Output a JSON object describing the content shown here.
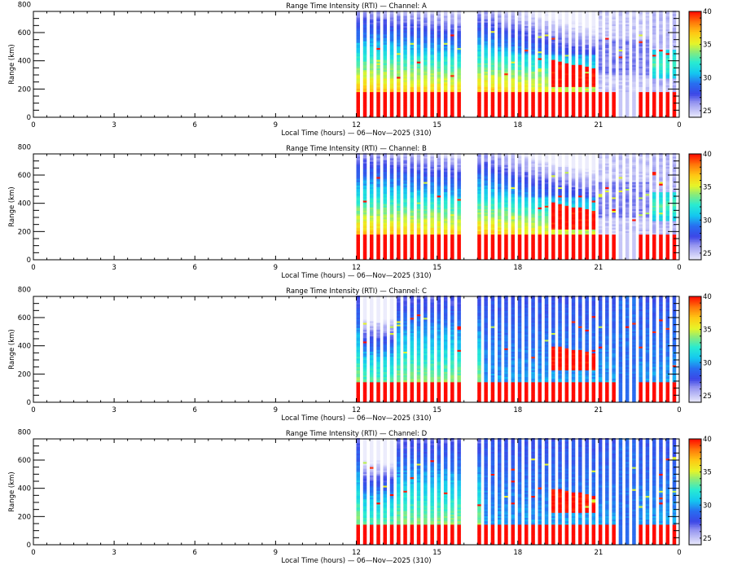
{
  "chart_data": [
    {
      "type": "heatmap",
      "title": "Range Time Intensity (RTI) — Channel: A",
      "channel": "A",
      "xlabel": "Local Time (hours) — 06—Nov—2025 (310)",
      "ylabel": "Range (km)",
      "xlim": [
        0,
        24
      ],
      "ylim": [
        0,
        750
      ],
      "x_ticks": [
        "0",
        "3",
        "6",
        "9",
        "12",
        "15",
        "18",
        "21",
        "0"
      ],
      "y_ticks": [
        "0",
        "200",
        "400",
        "600",
        "800"
      ],
      "colorbar": {
        "range": [
          24,
          40
        ],
        "ticks": [
          "25",
          "30",
          "35",
          "40"
        ],
        "colormap": "jet-with-light-low-end"
      },
      "data_segments": [
        {
          "start_hour": 12.0,
          "end_hour": 16.0
        },
        {
          "start_hour": 16.5,
          "end_hour": 24.0
        }
      ],
      "profile_interval_hours": 0.25,
      "ground_clutter_top_km": 180,
      "description": "Strong returns (>=40 dB) below ~180 km; intensity decays with range from ~35 dB at 250 km to ~26 dB above 600 km; late-evening enhanced layer near 300-400 km; background weakens to ~24 dB after 21h"
    },
    {
      "type": "heatmap",
      "title": "Range Time Intensity (RTI) — Channel: B",
      "channel": "B",
      "xlabel": "Local Time (hours) — 06—Nov—2025 (310)",
      "ylabel": "Range (km)",
      "xlim": [
        0,
        24
      ],
      "ylim": [
        0,
        750
      ],
      "x_ticks": [
        "0",
        "3",
        "6",
        "9",
        "12",
        "15",
        "18",
        "21",
        "0"
      ],
      "y_ticks": [
        "0",
        "200",
        "400",
        "600",
        "800"
      ],
      "colorbar": {
        "range": [
          24,
          40
        ],
        "ticks": [
          "25",
          "30",
          "35",
          "40"
        ],
        "colormap": "jet-with-light-low-end"
      },
      "data_segments": [
        {
          "start_hour": 12.0,
          "end_hour": 16.0
        },
        {
          "start_hour": 16.5,
          "end_hour": 24.0
        }
      ],
      "profile_interval_hours": 0.25,
      "ground_clutter_top_km": 180,
      "description": "Similar to channel A"
    },
    {
      "type": "heatmap",
      "title": "Range Time Intensity (RTI) — Channel: C",
      "channel": "C",
      "xlabel": "Local Time (hours) — 06—Nov—2025 (310)",
      "ylabel": "Range (km)",
      "xlim": [
        0,
        24
      ],
      "ylim": [
        0,
        750
      ],
      "x_ticks": [
        "0",
        "3",
        "6",
        "9",
        "12",
        "15",
        "18",
        "21",
        "0"
      ],
      "y_ticks": [
        "0",
        "200",
        "400",
        "600",
        "800"
      ],
      "colorbar": {
        "range": [
          24,
          40
        ],
        "ticks": [
          "25",
          "30",
          "35",
          "40"
        ],
        "colormap": "jet-with-light-low-end"
      },
      "data_segments": [
        {
          "start_hour": 12.0,
          "end_hour": 16.0
        },
        {
          "start_hour": 16.5,
          "end_hour": 24.0
        }
      ],
      "profile_interval_hours": 0.25,
      "ground_clutter_top_km": 150,
      "description": "Flatter profile ~28-33 dB through range; enhanced echo layer 250-400 km between 19h and 21h"
    },
    {
      "type": "heatmap",
      "title": "Range Time Intensity (RTI) — Channel: D",
      "channel": "D",
      "xlabel": "Local Time (hours) — 06—Nov—2025 (310)",
      "ylabel": "Range (km)",
      "xlim": [
        0,
        24
      ],
      "ylim": [
        0,
        750
      ],
      "x_ticks": [
        "0",
        "3",
        "6",
        "9",
        "12",
        "15",
        "18",
        "21",
        "0"
      ],
      "y_ticks": [
        "0",
        "200",
        "400",
        "600",
        "800"
      ],
      "colorbar": {
        "range": [
          24,
          40
        ],
        "ticks": [
          "25",
          "30",
          "35",
          "40"
        ],
        "colormap": "jet-with-light-low-end"
      },
      "data_segments": [
        {
          "start_hour": 12.0,
          "end_hour": 16.0
        },
        {
          "start_hour": 16.5,
          "end_hour": 24.0
        }
      ],
      "profile_interval_hours": 0.25,
      "ground_clutter_top_km": 150,
      "description": "Similar to channel C"
    }
  ]
}
